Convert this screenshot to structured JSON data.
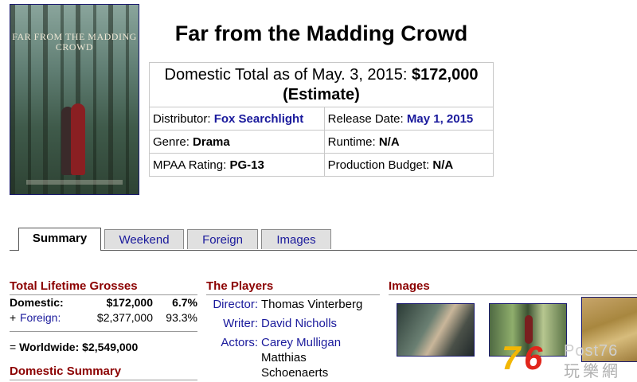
{
  "movie": {
    "title": "Far from the Madding Crowd",
    "poster_title": "FAR FROM THE MADDING CROWD"
  },
  "info": {
    "total_label": "Domestic Total as of May. 3, 2015: ",
    "total_value": "$172,000",
    "total_note": "(Estimate)",
    "distributor_label": "Distributor: ",
    "distributor_value": "Fox Searchlight",
    "release_label": "Release Date: ",
    "release_value": "May 1, 2015",
    "genre_label": "Genre: ",
    "genre_value": "Drama",
    "runtime_label": "Runtime: ",
    "runtime_value": "N/A",
    "mpaa_label": "MPAA Rating: ",
    "mpaa_value": "PG-13",
    "budget_label": "Production Budget: ",
    "budget_value": "N/A"
  },
  "tabs": [
    "Summary",
    "Weekend",
    "Foreign",
    "Images"
  ],
  "grosses": {
    "heading": "Total Lifetime Grosses",
    "domestic_label": "Domestic:",
    "domestic_value": "$172,000",
    "domestic_pct": "6.7%",
    "foreign_prefix": "+ ",
    "foreign_label": "Foreign:",
    "foreign_value": "$2,377,000",
    "foreign_pct": "93.3%",
    "worldwide_prefix": "= ",
    "worldwide_label": "Worldwide:",
    "worldwide_value": "$2,549,000",
    "domestic_summary_heading": "Domestic Summary"
  },
  "players": {
    "heading": "The Players",
    "director_label": "Director:",
    "director": "Thomas Vinterberg",
    "writer_label": "Writer:",
    "writer": "David Nicholls",
    "actors_label": "Actors:",
    "actors": [
      "Carey Mulligan",
      "Matthias",
      "Schoenaerts"
    ]
  },
  "images": {
    "heading": "Images"
  },
  "watermark": {
    "digit1": "7",
    "digit2": "6",
    "brand": "Post76",
    "brand_cn": "玩樂網"
  }
}
